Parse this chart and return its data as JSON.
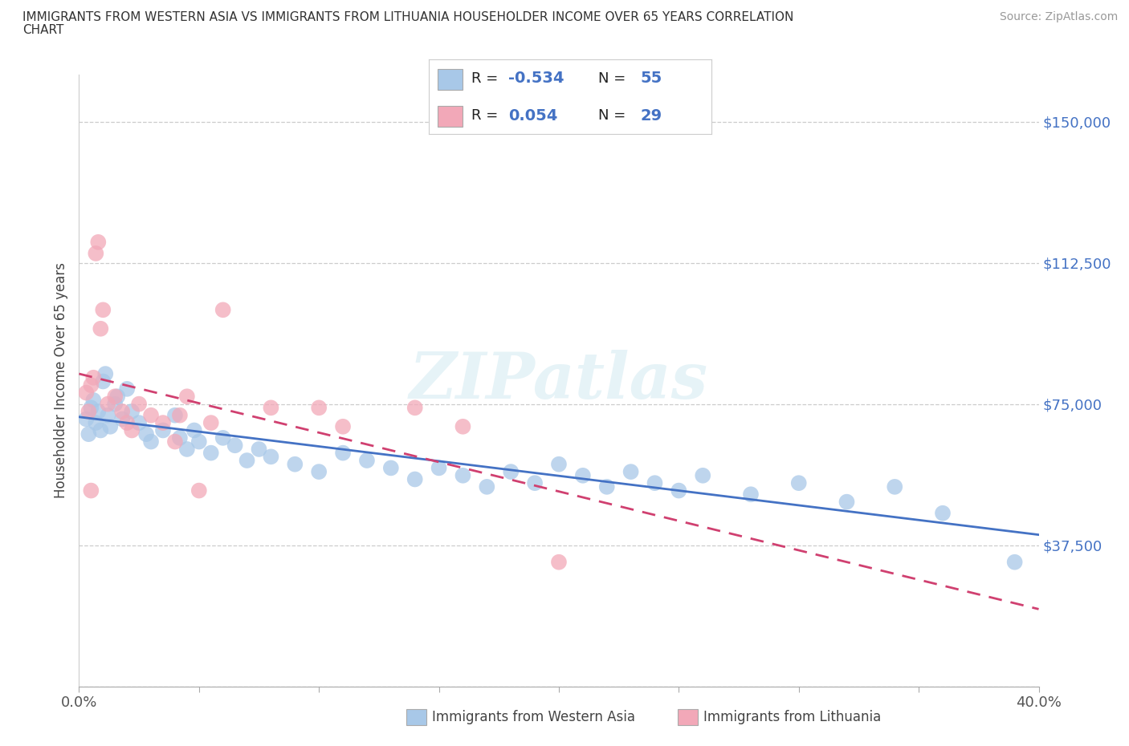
{
  "title_line1": "IMMIGRANTS FROM WESTERN ASIA VS IMMIGRANTS FROM LITHUANIA HOUSEHOLDER INCOME OVER 65 YEARS CORRELATION",
  "title_line2": "CHART",
  "source": "Source: ZipAtlas.com",
  "ylabel": "Householder Income Over 65 years",
  "xlim": [
    0.0,
    0.4
  ],
  "ylim": [
    0,
    162500
  ],
  "xticks": [
    0.0,
    0.05,
    0.1,
    0.15,
    0.2,
    0.25,
    0.3,
    0.35,
    0.4
  ],
  "yticks": [
    0,
    37500,
    75000,
    112500,
    150000
  ],
  "yticklabels": [
    "",
    "$37,500",
    "$75,000",
    "$112,500",
    "$150,000"
  ],
  "r_western_asia": -0.534,
  "n_western_asia": 55,
  "r_lithuania": 0.054,
  "n_lithuania": 29,
  "color_western_asia": "#a8c8e8",
  "color_lithuania": "#f2a8b8",
  "line_color_western_asia": "#4472c4",
  "line_color_lithuania": "#d04070",
  "legend_text_color": "#4472c4",
  "western_asia_points": [
    [
      0.003,
      71000
    ],
    [
      0.004,
      67000
    ],
    [
      0.005,
      74000
    ],
    [
      0.006,
      76000
    ],
    [
      0.007,
      70000
    ],
    [
      0.008,
      73000
    ],
    [
      0.009,
      68000
    ],
    [
      0.01,
      81000
    ],
    [
      0.011,
      83000
    ],
    [
      0.012,
      72000
    ],
    [
      0.013,
      69000
    ],
    [
      0.015,
      75000
    ],
    [
      0.016,
      77000
    ],
    [
      0.018,
      71000
    ],
    [
      0.02,
      79000
    ],
    [
      0.022,
      73000
    ],
    [
      0.025,
      70000
    ],
    [
      0.028,
      67000
    ],
    [
      0.03,
      65000
    ],
    [
      0.035,
      68000
    ],
    [
      0.04,
      72000
    ],
    [
      0.042,
      66000
    ],
    [
      0.045,
      63000
    ],
    [
      0.048,
      68000
    ],
    [
      0.05,
      65000
    ],
    [
      0.055,
      62000
    ],
    [
      0.06,
      66000
    ],
    [
      0.065,
      64000
    ],
    [
      0.07,
      60000
    ],
    [
      0.075,
      63000
    ],
    [
      0.08,
      61000
    ],
    [
      0.09,
      59000
    ],
    [
      0.1,
      57000
    ],
    [
      0.11,
      62000
    ],
    [
      0.12,
      60000
    ],
    [
      0.13,
      58000
    ],
    [
      0.14,
      55000
    ],
    [
      0.15,
      58000
    ],
    [
      0.16,
      56000
    ],
    [
      0.17,
      53000
    ],
    [
      0.18,
      57000
    ],
    [
      0.19,
      54000
    ],
    [
      0.2,
      59000
    ],
    [
      0.21,
      56000
    ],
    [
      0.22,
      53000
    ],
    [
      0.23,
      57000
    ],
    [
      0.24,
      54000
    ],
    [
      0.25,
      52000
    ],
    [
      0.26,
      56000
    ],
    [
      0.28,
      51000
    ],
    [
      0.3,
      54000
    ],
    [
      0.32,
      49000
    ],
    [
      0.34,
      53000
    ],
    [
      0.36,
      46000
    ],
    [
      0.39,
      33000
    ]
  ],
  "lithuania_points": [
    [
      0.003,
      78000
    ],
    [
      0.004,
      73000
    ],
    [
      0.005,
      80000
    ],
    [
      0.006,
      82000
    ],
    [
      0.007,
      115000
    ],
    [
      0.008,
      118000
    ],
    [
      0.009,
      95000
    ],
    [
      0.01,
      100000
    ],
    [
      0.012,
      75000
    ],
    [
      0.015,
      77000
    ],
    [
      0.018,
      73000
    ],
    [
      0.02,
      70000
    ],
    [
      0.022,
      68000
    ],
    [
      0.025,
      75000
    ],
    [
      0.03,
      72000
    ],
    [
      0.035,
      70000
    ],
    [
      0.04,
      65000
    ],
    [
      0.042,
      72000
    ],
    [
      0.045,
      77000
    ],
    [
      0.05,
      52000
    ],
    [
      0.055,
      70000
    ],
    [
      0.06,
      100000
    ],
    [
      0.08,
      74000
    ],
    [
      0.1,
      74000
    ],
    [
      0.11,
      69000
    ],
    [
      0.14,
      74000
    ],
    [
      0.16,
      69000
    ],
    [
      0.2,
      33000
    ],
    [
      0.005,
      52000
    ]
  ]
}
